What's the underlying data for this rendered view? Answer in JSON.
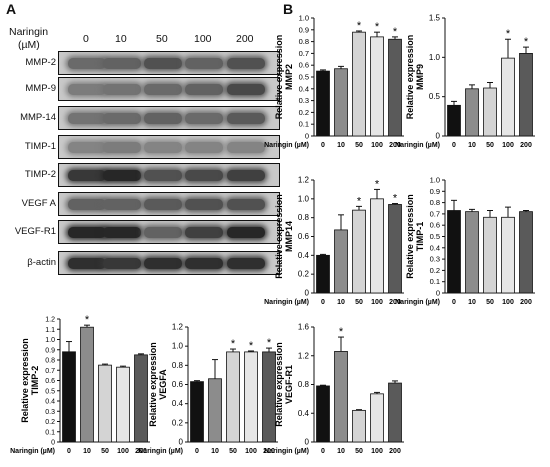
{
  "panel_a_label": "A",
  "panel_b_label": "B",
  "blot": {
    "header_line1": "Naringin",
    "header_line2": "(µM)",
    "lanes": [
      "0",
      "10",
      "50",
      "100",
      "200"
    ],
    "rows": [
      "MMP-2",
      "MMP-9",
      "MMP-14",
      "TIMP-1",
      "TIMP-2",
      "VEGF A",
      "VEGF-R1",
      "β-actin"
    ],
    "band_intensity": [
      [
        0.55,
        0.6,
        0.7,
        0.6,
        0.7
      ],
      [
        0.45,
        0.5,
        0.55,
        0.6,
        0.75
      ],
      [
        0.5,
        0.55,
        0.6,
        0.55,
        0.65
      ],
      [
        0.4,
        0.45,
        0.4,
        0.4,
        0.4
      ],
      [
        0.85,
        0.95,
        0.7,
        0.75,
        0.8
      ],
      [
        0.6,
        0.6,
        0.65,
        0.7,
        0.7
      ],
      [
        0.95,
        0.95,
        0.6,
        0.8,
        0.95
      ],
      [
        0.9,
        0.85,
        0.9,
        0.9,
        0.9
      ]
    ]
  },
  "xaxis_title": "Naringin (µM)",
  "bar_colors": [
    "#111111",
    "#8c8c8c",
    "#d4d4d4",
    "#e6e6e6",
    "#5a5a5a"
  ],
  "chart_data": [
    {
      "type": "bar",
      "id": "mmp2",
      "ylabel_line1": "Relative expression",
      "ylabel_line2": "MMP2",
      "categories": [
        "0",
        "10",
        "50",
        "100",
        "200"
      ],
      "values": [
        0.55,
        0.57,
        0.88,
        0.84,
        0.82
      ],
      "errors": [
        0.01,
        0.02,
        0.01,
        0.04,
        0.02
      ],
      "significant": [
        false,
        false,
        true,
        true,
        true
      ],
      "ylim": [
        0,
        1.0
      ],
      "yticks": [
        "0",
        "0.1",
        "0.2",
        "0.3",
        "0.4",
        "0.5",
        "0.6",
        "0.7",
        "0.8",
        "0.9",
        "1.0"
      ]
    },
    {
      "type": "bar",
      "id": "mmp9",
      "ylabel_line1": "Relative expression",
      "ylabel_line2": "MMP9",
      "categories": [
        "0",
        "10",
        "50",
        "100",
        "200"
      ],
      "values": [
        0.39,
        0.6,
        0.61,
        0.99,
        1.05
      ],
      "errors": [
        0.05,
        0.05,
        0.07,
        0.24,
        0.08
      ],
      "significant": [
        false,
        false,
        false,
        true,
        true
      ],
      "ylim": [
        0,
        1.5
      ],
      "yticks": [
        "0",
        "0.5",
        "1.0",
        "1.5"
      ]
    },
    {
      "type": "bar",
      "id": "mmp14",
      "ylabel_line1": "Relative expression",
      "ylabel_line2": "MMP14",
      "categories": [
        "0",
        "10",
        "50",
        "100",
        "200"
      ],
      "values": [
        0.4,
        0.67,
        0.88,
        1.0,
        0.94
      ],
      "errors": [
        0.01,
        0.16,
        0.04,
        0.1,
        0.01
      ],
      "significant": [
        false,
        false,
        true,
        true,
        true
      ],
      "ylim": [
        0,
        1.2
      ],
      "yticks": [
        "0",
        "0.2",
        "0.4",
        "0.6",
        "0.8",
        "1.0",
        "1.2"
      ]
    },
    {
      "type": "bar",
      "id": "timp1",
      "ylabel_line1": "Relative expression",
      "ylabel_line2": "TIMP-1",
      "categories": [
        "0",
        "10",
        "50",
        "100",
        "200"
      ],
      "values": [
        0.73,
        0.72,
        0.67,
        0.67,
        0.72
      ],
      "errors": [
        0.09,
        0.02,
        0.06,
        0.09,
        0.01
      ],
      "significant": [
        false,
        false,
        false,
        false,
        false
      ],
      "ylim": [
        0,
        1.0
      ],
      "yticks": [
        "0",
        "0.1",
        "0.2",
        "0.3",
        "0.4",
        "0.5",
        "0.6",
        "0.7",
        "0.8",
        "0.9",
        "1.0"
      ]
    },
    {
      "type": "bar",
      "id": "timp2",
      "ylabel_line1": "Relative expression",
      "ylabel_line2": "TIMP-2",
      "categories": [
        "0",
        "10",
        "50",
        "100",
        "200"
      ],
      "values": [
        0.88,
        1.12,
        0.75,
        0.73,
        0.85
      ],
      "errors": [
        0.1,
        0.02,
        0.01,
        0.01,
        0.01
      ],
      "significant": [
        false,
        true,
        false,
        false,
        false
      ],
      "ylim": [
        0,
        1.2
      ],
      "yticks": [
        "0",
        "0.1",
        "0.2",
        "0.3",
        "0.4",
        "0.5",
        "0.6",
        "0.7",
        "0.8",
        "0.9",
        "1.0",
        "1.1",
        "1.2"
      ]
    },
    {
      "type": "bar",
      "id": "vegfa",
      "ylabel_line1": "Relative expression",
      "ylabel_line2": "VEGFA",
      "categories": [
        "0",
        "10",
        "50",
        "100",
        "200"
      ],
      "values": [
        0.63,
        0.66,
        0.94,
        0.94,
        0.94
      ],
      "errors": [
        0.01,
        0.2,
        0.03,
        0.01,
        0.04
      ],
      "significant": [
        false,
        false,
        true,
        true,
        true
      ],
      "ylim": [
        0,
        1.2
      ],
      "yticks": [
        "0",
        "0.2",
        "0.4",
        "0.6",
        "0.8",
        "1.0",
        "1.2"
      ]
    },
    {
      "type": "bar",
      "id": "vegfr1",
      "ylabel_line1": "Relative expression",
      "ylabel_line2": "VEGF-R1",
      "categories": [
        "0",
        "10",
        "50",
        "100",
        "200"
      ],
      "values": [
        0.78,
        1.26,
        0.44,
        0.67,
        0.82
      ],
      "errors": [
        0.01,
        0.2,
        0.01,
        0.02,
        0.03
      ],
      "significant": [
        false,
        true,
        false,
        false,
        false
      ],
      "ylim": [
        0,
        1.6
      ],
      "yticks": [
        "0",
        "0.4",
        "0.8",
        "1.2",
        "1.6"
      ]
    }
  ]
}
